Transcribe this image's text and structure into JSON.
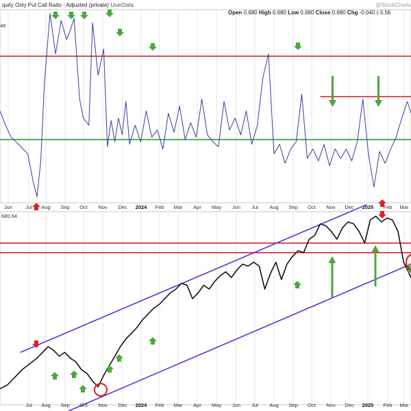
{
  "header": {
    "title": "quity Only Put Call Ratio - Adjusted (private)",
    "source": "UserData",
    "ohlc": [
      {
        "label": "Open",
        "value": "0.680"
      },
      {
        "label": "High",
        "value": "0.680"
      },
      {
        "label": "Low",
        "value": "0.680"
      },
      {
        "label": "Close",
        "value": "0.680"
      },
      {
        "label": "Chg",
        "value": "-0.040 (-5.56"
      }
    ],
    "watermark": "@StockCharts",
    "small_value": "48"
  },
  "lower_header": {
    "value": "680.94"
  },
  "colors": {
    "ratio_line": "#3b3b9a",
    "price_line": "#111111",
    "red": "#d92525",
    "green": "#2e9a2e",
    "channel": "#5b2fd8",
    "arrow_green": "#4aa83a",
    "arrow_red": "#e02020"
  },
  "chart_data": [
    {
      "type": "line",
      "title": "quity Only Put Call Ratio - Adjusted (private)",
      "x_ticks": [
        "Jun",
        "Jul",
        "Aug",
        "Sep",
        "Oct",
        "Nov",
        "Dec",
        "2024",
        "Feb",
        "Mar",
        "Apr",
        "May",
        "Jun",
        "Jul",
        "Aug",
        "Sep",
        "Oct",
        "Nov",
        "Dec",
        "2025",
        "Feb",
        "Mar"
      ],
      "x_range": [
        0,
        22.2
      ],
      "y_range": [
        0.2,
        1.0
      ],
      "series": [
        {
          "x": [
            0,
            0.3,
            0.6,
            1.0,
            1.5,
            1.8,
            2.0,
            2.2,
            2.4,
            2.7,
            3.0,
            3.3,
            3.6,
            3.8,
            4.0,
            4.3,
            4.5,
            4.8,
            5.0,
            5.3,
            5.6,
            5.8,
            6.0,
            6.2,
            6.4,
            6.6,
            6.8,
            7.0,
            7.3,
            7.6,
            7.9,
            8.2,
            8.5,
            8.8,
            9.1,
            9.4,
            9.7,
            10.0,
            10.3,
            10.6,
            10.9,
            11.2,
            11.5,
            11.8,
            12.1,
            12.4,
            12.7,
            13.0,
            13.3,
            13.6,
            13.9,
            14.2,
            14.5,
            14.8,
            15.1,
            15.4,
            15.7,
            16.0,
            16.3,
            16.6,
            16.9,
            17.2,
            17.5,
            17.8,
            18.1,
            18.4,
            18.7,
            19.0,
            19.3,
            19.6,
            19.9,
            20.2,
            20.5,
            20.8,
            21.1,
            21.4,
            21.7,
            22.0,
            22.2
          ],
          "values": [
            0.58,
            0.52,
            0.47,
            0.44,
            0.4,
            0.28,
            0.22,
            0.37,
            0.7,
            0.99,
            0.82,
            0.96,
            0.88,
            0.92,
            0.97,
            0.63,
            0.55,
            0.52,
            0.95,
            0.73,
            0.84,
            0.43,
            0.54,
            0.45,
            0.55,
            0.48,
            0.62,
            0.44,
            0.52,
            0.45,
            0.58,
            0.47,
            0.5,
            0.42,
            0.57,
            0.49,
            0.6,
            0.46,
            0.53,
            0.47,
            0.63,
            0.48,
            0.45,
            0.43,
            0.62,
            0.5,
            0.55,
            0.48,
            0.58,
            0.44,
            0.52,
            0.72,
            0.82,
            0.4,
            0.44,
            0.36,
            0.42,
            0.45,
            0.65,
            0.38,
            0.42,
            0.37,
            0.44,
            0.35,
            0.42,
            0.38,
            0.42,
            0.37,
            0.45,
            0.63,
            0.4,
            0.26,
            0.41,
            0.36,
            0.42,
            0.47,
            0.55,
            0.62,
            0.57
          ]
        }
      ],
      "horizontal_lines": [
        {
          "value": 0.81,
          "color": "red",
          "x_from": 0,
          "x_to": 22.2
        },
        {
          "value": 0.64,
          "color": "red",
          "x_from": 17.3,
          "x_to": 22.2
        },
        {
          "value": 0.46,
          "color": "green",
          "x_from": 0,
          "x_to": 22.2
        }
      ],
      "grid": true
    },
    {
      "type": "line",
      "x_ticks": [
        "Jul",
        "Aug",
        "Sep",
        "Oct",
        "Nov",
        "Dec",
        "2024",
        "Feb",
        "Mar",
        "Apr",
        "May",
        "Jun",
        "Jul",
        "Aug",
        "Sep",
        "Oct",
        "Nov",
        "Dec",
        "2025",
        "Feb",
        "Mar"
      ],
      "x_range": [
        0,
        22.2
      ],
      "y_range": [
        0,
        100
      ],
      "series": [
        {
          "x": [
            0,
            0.4,
            0.8,
            1.2,
            1.6,
            2.0,
            2.3,
            2.6,
            2.9,
            3.2,
            3.5,
            3.8,
            4.1,
            4.4,
            4.7,
            5.0,
            5.3,
            5.6,
            5.9,
            6.2,
            6.5,
            6.8,
            7.1,
            7.4,
            7.7,
            8.0,
            8.3,
            8.6,
            8.9,
            9.2,
            9.5,
            9.8,
            10.1,
            10.4,
            10.7,
            11.0,
            11.3,
            11.6,
            11.9,
            12.2,
            12.5,
            12.8,
            13.1,
            13.4,
            13.7,
            14.0,
            14.3,
            14.6,
            14.9,
            15.2,
            15.5,
            15.8,
            16.1,
            16.4,
            16.7,
            17.0,
            17.3,
            17.6,
            17.9,
            18.2,
            18.5,
            18.8,
            19.1,
            19.4,
            19.7,
            20.0,
            20.3,
            20.6,
            20.9,
            21.2,
            21.5,
            21.8,
            22.0,
            22.2
          ],
          "values": [
            8,
            10,
            14,
            18,
            21,
            24,
            27,
            30,
            28,
            25,
            27,
            24,
            22,
            18,
            16,
            12,
            9,
            15,
            20,
            25,
            30,
            34,
            37,
            40,
            44,
            47,
            50,
            52,
            55,
            58,
            60,
            63,
            62,
            55,
            58,
            62,
            60,
            64,
            67,
            69,
            66,
            70,
            73,
            72,
            74,
            72,
            60,
            68,
            74,
            65,
            73,
            77,
            80,
            79,
            86,
            88,
            94,
            93,
            90,
            86,
            92,
            95,
            94,
            90,
            84,
            96,
            98,
            95,
            97,
            96,
            90,
            74,
            70,
            66
          ]
        }
      ],
      "horizontal_lines": [
        {
          "value": 84,
          "color": "red",
          "x_from": 0,
          "x_to": 22.2
        },
        {
          "value": 79,
          "color": "red",
          "x_from": 0,
          "x_to": 22.2
        }
      ],
      "trend_channel": [
        {
          "from": [
            1.1,
            27
          ],
          "to": [
            19.8,
            104
          ]
        },
        {
          "from": [
            3.6,
            -4
          ],
          "to": [
            22.2,
            73
          ]
        }
      ],
      "grid": true
    }
  ]
}
